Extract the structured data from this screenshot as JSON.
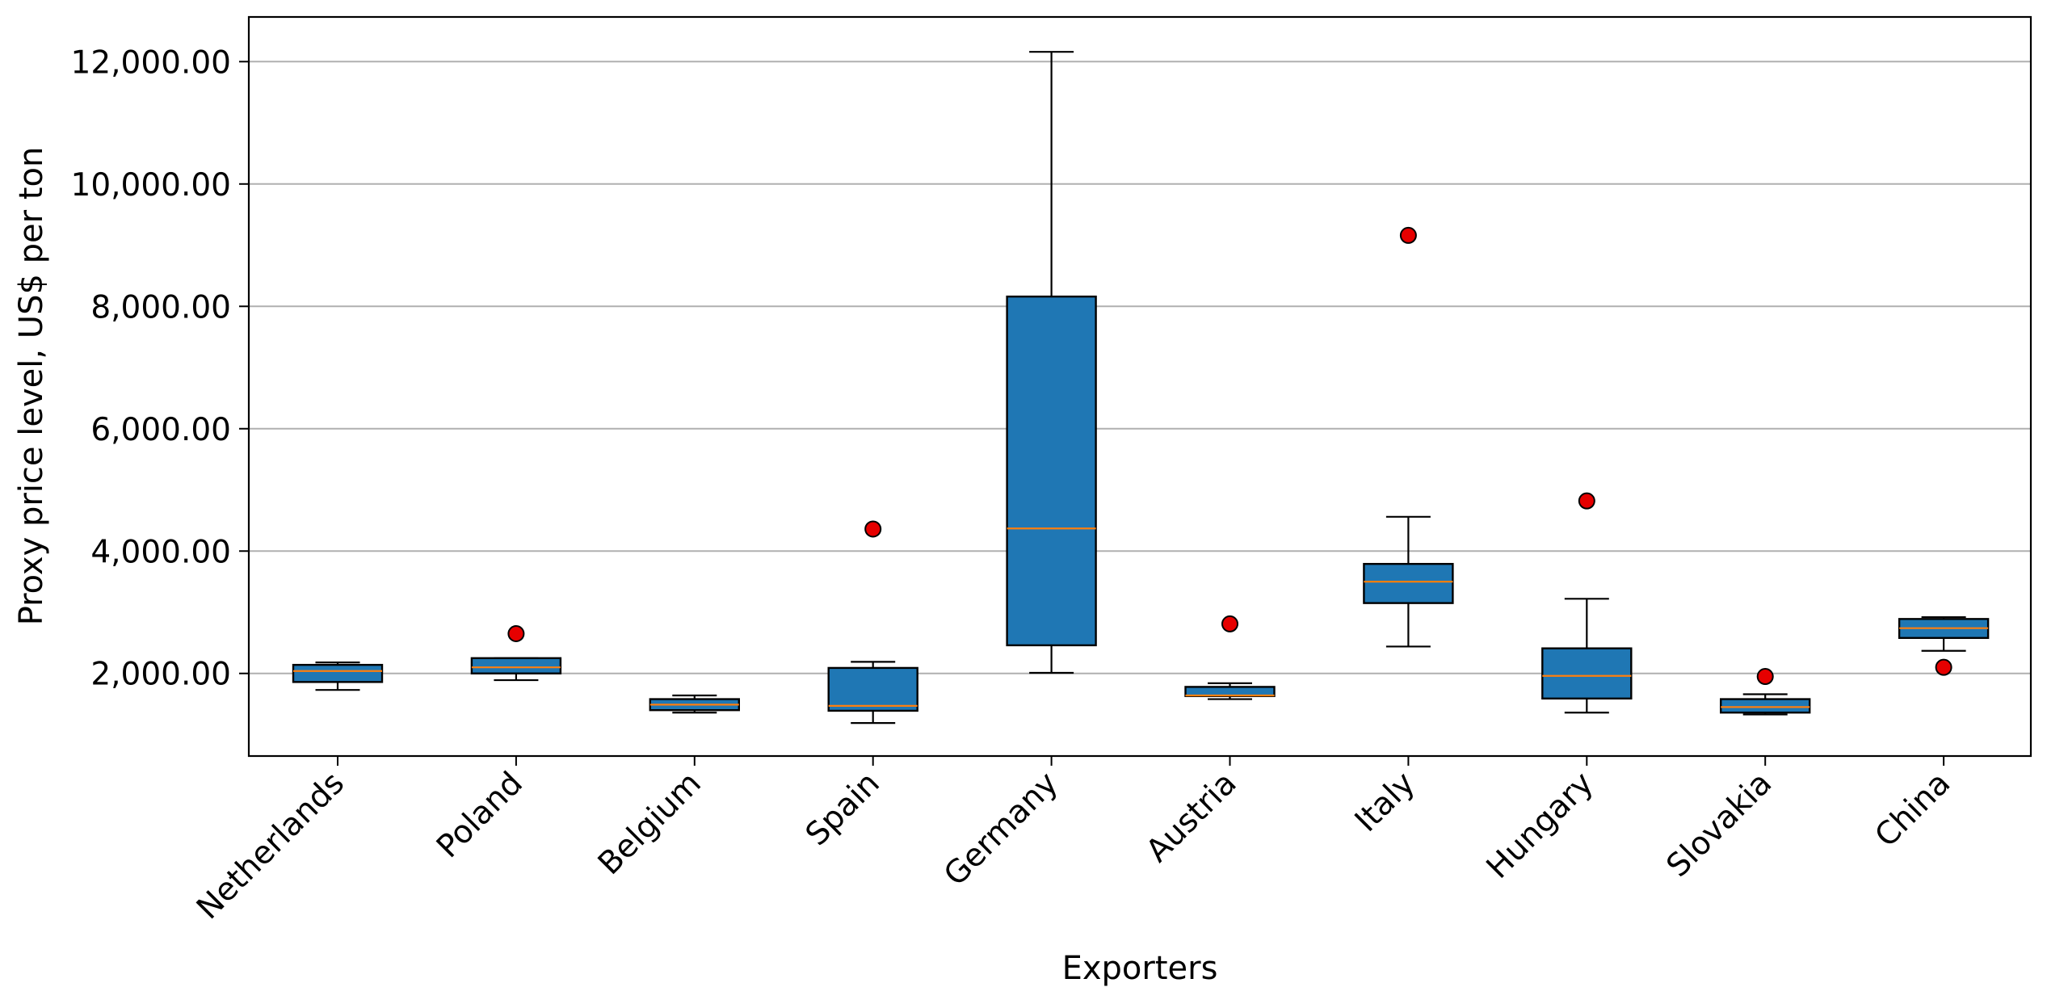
{
  "chart_data": {
    "type": "box",
    "title": "",
    "xlabel": "Exporters",
    "ylabel": "Proxy price level, US$ per ton",
    "ylim": [
      650,
      12730
    ],
    "y_ticks": [
      2000,
      4000,
      6000,
      8000,
      10000,
      12000
    ],
    "y_tick_labels": [
      "2,000.00",
      "4,000.00",
      "6,000.00",
      "8,000.00",
      "10,000.00",
      "12,000.00"
    ],
    "grid": "horizontal",
    "categories": [
      "Netherlands",
      "Poland",
      "Belgium",
      "Spain",
      "Germany",
      "Austria",
      "Italy",
      "Hungary",
      "Slovakia",
      "China"
    ],
    "boxes": [
      {
        "category": "Netherlands",
        "whisker_low": 1730,
        "q1": 1860,
        "median": 2040,
        "q3": 2140,
        "whisker_high": 2180,
        "outliers": []
      },
      {
        "category": "Poland",
        "whisker_low": 1890,
        "q1": 2000,
        "median": 2100,
        "q3": 2250,
        "whisker_high": 2250,
        "outliers": [
          2650
        ]
      },
      {
        "category": "Belgium",
        "whisker_low": 1360,
        "q1": 1400,
        "median": 1490,
        "q3": 1580,
        "whisker_high": 1640,
        "outliers": []
      },
      {
        "category": "Spain",
        "whisker_low": 1190,
        "q1": 1390,
        "median": 1470,
        "q3": 2090,
        "whisker_high": 2190,
        "outliers": [
          4360
        ]
      },
      {
        "category": "Germany",
        "whisker_low": 2010,
        "q1": 2460,
        "median": 4370,
        "q3": 8160,
        "whisker_high": 12160,
        "outliers": []
      },
      {
        "category": "Austria",
        "whisker_low": 1580,
        "q1": 1630,
        "median": 1640,
        "q3": 1780,
        "whisker_high": 1840,
        "outliers": [
          2810
        ]
      },
      {
        "category": "Italy",
        "whisker_low": 2440,
        "q1": 3150,
        "median": 3500,
        "q3": 3790,
        "whisker_high": 4560,
        "outliers": [
          9160
        ]
      },
      {
        "category": "Hungary",
        "whisker_low": 1360,
        "q1": 1590,
        "median": 1960,
        "q3": 2410,
        "whisker_high": 3220,
        "outliers": [
          4820
        ]
      },
      {
        "category": "Slovakia",
        "whisker_low": 1330,
        "q1": 1360,
        "median": 1450,
        "q3": 1580,
        "whisker_high": 1660,
        "outliers": [
          1950
        ]
      },
      {
        "category": "China",
        "whisker_low": 2370,
        "q1": 2580,
        "median": 2740,
        "q3": 2890,
        "whisker_high": 2920,
        "outliers": [
          2100
        ]
      }
    ],
    "colors": {
      "box_fill": "#1f77b4",
      "median": "#ff7f0e",
      "outlier_fill": "#e60000",
      "grid": "#b0b0b0"
    }
  }
}
